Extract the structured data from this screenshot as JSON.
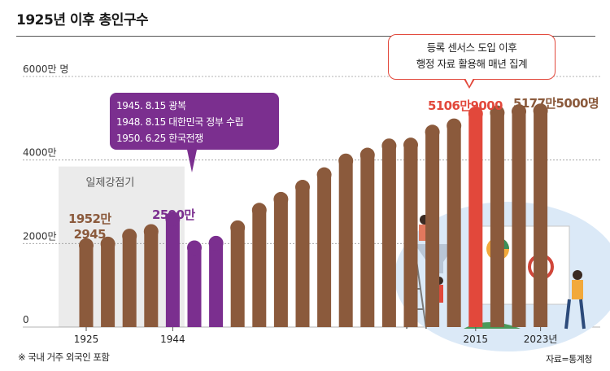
{
  "header": {
    "title": "1925년 이후 총인구수"
  },
  "colors": {
    "brown": "#8b5a3c",
    "purple": "#7b2f8f",
    "red": "#e2483b",
    "shade": "#ebebeb"
  },
  "chart_data": {
    "type": "bar",
    "title": "1925년 이후 총인구수",
    "y_unit_label": "만 명",
    "ylim": [
      0,
      6000
    ],
    "y_ticks": [
      {
        "value": 0,
        "label": "0"
      },
      {
        "value": 2000,
        "label": "2000만"
      },
      {
        "value": 4000,
        "label": "4000만"
      },
      {
        "value": 6000,
        "label": "6000만 명"
      }
    ],
    "x_tick_labels": [
      {
        "index": 0,
        "label": "1925"
      },
      {
        "index": 4,
        "label": "1944"
      },
      {
        "index": 18,
        "label": "2015"
      },
      {
        "index": 21,
        "label": "2023년"
      }
    ],
    "values": [
      1952,
      1990,
      2180,
      2290,
      2590,
      1900,
      2010,
      2380,
      2800,
      3060,
      3350,
      3650,
      3980,
      4120,
      4340,
      4360,
      4670,
      4820,
      5106.9,
      5130,
      5160,
      5177.5
    ],
    "highlight": {
      "purple": [
        4,
        5,
        6
      ],
      "red": [
        18
      ]
    },
    "shaded_region": {
      "from_index": 0,
      "to_index": 4,
      "label": "일제강점기"
    },
    "annotations": {
      "first": [
        "1952만",
        "2945"
      ],
      "peak_1944": "2590만",
      "year_2015": "5106만9000",
      "year_2023": "5177만5000명"
    }
  },
  "callouts": {
    "purple_lines": [
      "1945. 8.15 광복",
      "1948. 8.15 대한민국 정부 수립",
      "1950. 6.25 한국전쟁"
    ],
    "red_lines": [
      "등록 센서스 도입 이후",
      "행정 자료 활용해 매년 집계"
    ]
  },
  "footer": {
    "note": "※ 국내 거주 외국인 포함",
    "source": "자료=통계청"
  }
}
